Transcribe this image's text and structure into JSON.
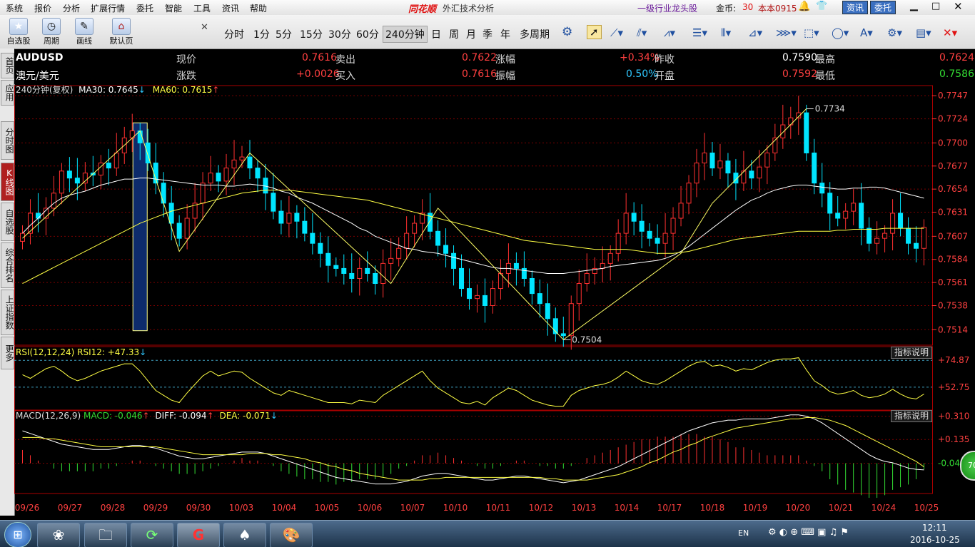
{
  "menubar": {
    "items": [
      "系统",
      "报价",
      "分析",
      "扩展行情",
      "委托",
      "智能",
      "工具",
      "资讯",
      "帮助"
    ],
    "app_logo": "同花顺",
    "app_subtitle": "外汇技术分析",
    "industry_link": "一级行业龙头股",
    "coins_label": "金币:",
    "coins_value": "30",
    "user": "本本0915",
    "news_btn": "资讯",
    "trade_btn": "委托"
  },
  "toolbar": {
    "big_buttons": [
      "自选股",
      "周期",
      "画线",
      "默认页"
    ],
    "periods": [
      "分时",
      "1分",
      "5分",
      "15分",
      "30分",
      "60分",
      "240分钟",
      "日",
      "周",
      "月",
      "季",
      "年",
      "多周期"
    ],
    "active_period": "240分钟",
    "tool_icons": [
      "gear-icon",
      "cursor-icon",
      "line-tool-icon",
      "parallel-line-icon",
      "wave-tool-icon",
      "fib-icon",
      "bars-icon",
      "channel-icon",
      "gann-icon",
      "rectangle-icon",
      "circle-icon",
      "text-tool-icon",
      "settings-icon",
      "save-icon",
      "delete-icon"
    ]
  },
  "sidetabs": [
    "首页",
    "应用",
    "分时图",
    "K线图",
    "自选股",
    "综合排名",
    "上证指数",
    "更多"
  ],
  "active_sidetab": "K线图",
  "quote": {
    "symbol": "AUDUSD",
    "name": "澳元/美元",
    "now_label": "现价",
    "now_value": "0.7616",
    "change_label": "涨跌",
    "change_value": "+0.0026",
    "sell_label": "卖出",
    "sell_value": "0.7622",
    "buy_label": "买入",
    "buy_value": "0.7616",
    "pct_label": "涨幅",
    "pct_value": "+0.34%",
    "amp_label": "振幅",
    "amp_value": "0.50%",
    "prevclose_label": "昨收",
    "prevclose_value": "0.7590",
    "open_label": "开盘",
    "open_value": "0.7592",
    "high_label": "最高",
    "high_value": "0.7624",
    "low_label": "最低",
    "low_value": "0.7586"
  },
  "main_legend": {
    "period": "240分钟(复权)",
    "ma30": "MA30: 0.7645",
    "ma60": "MA60: 0.7615"
  },
  "rsi_legend": {
    "title": "RSI(12,12,24)",
    "value": "RSI12: +47.33"
  },
  "macd_legend": {
    "title": "MACD(12,26,9)",
    "macd": "MACD: -0.046",
    "diff": "DIFF: -0.094",
    "dea": "DEA: -0.071"
  },
  "indicator_btn": "指标说明",
  "zoom_badge": "70",
  "taskbar": {
    "time": "12:11",
    "date": "2016-10-25",
    "lang": "EN"
  },
  "colors": {
    "up": "#ff3030",
    "down": "#00e5ff",
    "ma30": "#ffffff",
    "ma60": "#ffff44",
    "grid": "#7a0000"
  },
  "chart_data": [
    {
      "type": "candlestick",
      "title": "AUDUSD 240分钟",
      "x_tick_labels": [
        "09/26",
        "09/27",
        "09/28",
        "09/29",
        "09/30",
        "10/03",
        "10/04",
        "10/05",
        "10/06",
        "10/07",
        "10/10",
        "10/11",
        "10/12",
        "10/13",
        "10/14",
        "10/17",
        "10/18",
        "10/19",
        "10/20",
        "10/21",
        "10/24",
        "10/25"
      ],
      "y_ticks": [
        0.7747,
        0.7724,
        0.77,
        0.7677,
        0.7654,
        0.7631,
        0.7607,
        0.7584,
        0.7561,
        0.7538,
        0.7514
      ],
      "ylim": [
        0.75,
        0.775
      ],
      "annotations": [
        {
          "label": "0.7734",
          "value": 0.7734
        },
        {
          "label": "0.7504",
          "value": 0.7504
        }
      ],
      "closes": [
        0.761,
        0.763,
        0.7625,
        0.7635,
        0.765,
        0.7672,
        0.7665,
        0.766,
        0.767,
        0.7668,
        0.768,
        0.7675,
        0.769,
        0.7705,
        0.7712,
        0.77,
        0.768,
        0.766,
        0.764,
        0.762,
        0.7605,
        0.7625,
        0.764,
        0.766,
        0.767,
        0.7662,
        0.7675,
        0.7683,
        0.7686,
        0.7675,
        0.7665,
        0.765,
        0.7632,
        0.762,
        0.763,
        0.7622,
        0.761,
        0.76,
        0.759,
        0.7578,
        0.7575,
        0.757,
        0.7565,
        0.7575,
        0.757,
        0.756,
        0.758,
        0.7585,
        0.7595,
        0.761,
        0.762,
        0.763,
        0.7612,
        0.7598,
        0.759,
        0.7575,
        0.7555,
        0.7545,
        0.7548,
        0.7538,
        0.7555,
        0.757,
        0.758,
        0.7575,
        0.7565,
        0.755,
        0.754,
        0.7525,
        0.751,
        0.7508,
        0.754,
        0.756,
        0.757,
        0.7575,
        0.758,
        0.759,
        0.761,
        0.763,
        0.7622,
        0.7612,
        0.7605,
        0.76,
        0.761,
        0.7625,
        0.764,
        0.766,
        0.768,
        0.769,
        0.7675,
        0.7682,
        0.767,
        0.766,
        0.7672,
        0.7665,
        0.7676,
        0.769,
        0.7705,
        0.7718,
        0.7725,
        0.773,
        0.769,
        0.766,
        0.765,
        0.763,
        0.7625,
        0.7632,
        0.764,
        0.7615,
        0.76,
        0.7605,
        0.761,
        0.763,
        0.7615,
        0.76,
        0.7595,
        0.7616
      ],
      "ma30": [
        0.761,
        0.7618,
        0.7625,
        0.7633,
        0.764,
        0.7645,
        0.7648,
        0.765,
        0.7652,
        0.7655,
        0.7658,
        0.766,
        0.7662,
        0.7664,
        0.7664,
        0.7665,
        0.7665,
        0.7664,
        0.7663,
        0.7662,
        0.7661,
        0.766,
        0.7659,
        0.7658,
        0.7658,
        0.7658,
        0.7657,
        0.7657,
        0.7658,
        0.7659,
        0.7658,
        0.7657,
        0.7655,
        0.7652,
        0.765,
        0.7646,
        0.7643,
        0.764,
        0.7636,
        0.7632,
        0.7628,
        0.7624,
        0.762,
        0.7615,
        0.7612,
        0.7607,
        0.7604,
        0.7601,
        0.7598,
        0.7595,
        0.7594,
        0.7592,
        0.7591,
        0.759,
        0.7588,
        0.7586,
        0.7584,
        0.7582,
        0.758,
        0.7578,
        0.7576,
        0.7575,
        0.7575,
        0.7574,
        0.7573,
        0.7572,
        0.7571,
        0.757,
        0.757,
        0.757,
        0.7571,
        0.7572,
        0.7573,
        0.7574,
        0.7575,
        0.7577,
        0.7578,
        0.7579,
        0.758,
        0.7581,
        0.7582,
        0.7583,
        0.7585,
        0.7588,
        0.7592,
        0.7597,
        0.7603,
        0.7609,
        0.7615,
        0.7621,
        0.7627,
        0.7633,
        0.7638,
        0.7643,
        0.7646,
        0.765,
        0.7653,
        0.7655,
        0.7657,
        0.7658,
        0.7658,
        0.7657,
        0.7656,
        0.7655,
        0.7654,
        0.7654,
        0.7655,
        0.7655,
        0.7656,
        0.7656,
        0.7655,
        0.7653,
        0.7651,
        0.7649,
        0.7647,
        0.7645
      ],
      "ma60": [
        0.756,
        0.7564,
        0.7568,
        0.7572,
        0.7576,
        0.758,
        0.7584,
        0.7588,
        0.7592,
        0.7596,
        0.76,
        0.7604,
        0.7608,
        0.7612,
        0.7616,
        0.762,
        0.7623,
        0.7626,
        0.7629,
        0.7632,
        0.7634,
        0.7636,
        0.7638,
        0.764,
        0.7642,
        0.7644,
        0.7646,
        0.7648,
        0.765,
        0.7651,
        0.7652,
        0.7653,
        0.7653,
        0.7653,
        0.7653,
        0.7652,
        0.7651,
        0.765,
        0.7649,
        0.7648,
        0.7647,
        0.7646,
        0.7645,
        0.7644,
        0.7643,
        0.7641,
        0.7639,
        0.7637,
        0.7635,
        0.7633,
        0.7631,
        0.7629,
        0.7627,
        0.7625,
        0.7623,
        0.7621,
        0.7619,
        0.7617,
        0.7615,
        0.7613,
        0.7611,
        0.7609,
        0.7607,
        0.7605,
        0.7603,
        0.7602,
        0.7601,
        0.76,
        0.7599,
        0.7598,
        0.7597,
        0.7596,
        0.7595,
        0.7594,
        0.7594,
        0.7594,
        0.7594,
        0.7594,
        0.7593,
        0.7592,
        0.7591,
        0.759,
        0.759,
        0.759,
        0.7591,
        0.7592,
        0.7594,
        0.7596,
        0.7598,
        0.76,
        0.7602,
        0.7604,
        0.7605,
        0.7606,
        0.7607,
        0.7608,
        0.7609,
        0.761,
        0.7611,
        0.7612,
        0.7612,
        0.7612,
        0.7612,
        0.7612,
        0.7613,
        0.7613,
        0.7614,
        0.7614,
        0.7614,
        0.7614,
        0.7615,
        0.7615,
        0.7615,
        0.7615,
        0.7615,
        0.7615
      ]
    },
    {
      "type": "line",
      "title": "RSI(12,12,24)",
      "y_ticks": [
        74.87,
        52.75
      ],
      "ylim": [
        35,
        85
      ],
      "values": [
        63,
        60,
        64,
        68,
        70,
        66,
        61,
        58,
        60,
        63,
        66,
        68,
        70,
        72,
        72,
        66,
        58,
        50,
        46,
        42,
        40,
        48,
        55,
        62,
        66,
        62,
        64,
        66,
        65,
        60,
        56,
        52,
        48,
        46,
        50,
        48,
        46,
        44,
        42,
        40,
        40,
        40,
        39,
        42,
        41,
        40,
        46,
        50,
        54,
        58,
        62,
        66,
        58,
        52,
        48,
        44,
        40,
        39,
        41,
        38,
        44,
        48,
        52,
        50,
        46,
        42,
        40,
        38,
        37,
        37,
        46,
        50,
        52,
        54,
        55,
        57,
        61,
        66,
        62,
        58,
        56,
        55,
        58,
        62,
        66,
        70,
        73,
        74,
        70,
        71,
        69,
        66,
        68,
        67,
        70,
        73,
        75,
        76,
        76,
        77,
        67,
        58,
        54,
        49,
        47,
        48,
        50,
        46,
        44,
        45,
        47,
        51,
        47,
        44,
        43,
        47
      ]
    },
    {
      "type": "line",
      "title": "MACD(12,26,9)",
      "y_ticks": [
        0.31,
        0.135,
        -0.044
      ],
      "ylim": [
        -0.25,
        0.34
      ],
      "diff": [
        0.2,
        0.18,
        0.16,
        0.14,
        0.12,
        0.1,
        0.09,
        0.08,
        0.07,
        0.06,
        0.06,
        0.06,
        0.07,
        0.08,
        0.09,
        0.09,
        0.08,
        0.07,
        0.05,
        0.03,
        0.01,
        0.0,
        -0.01,
        -0.01,
        0.0,
        0.01,
        0.02,
        0.03,
        0.04,
        0.04,
        0.04,
        0.03,
        0.01,
        -0.01,
        -0.03,
        -0.05,
        -0.07,
        -0.09,
        -0.11,
        -0.13,
        -0.15,
        -0.16,
        -0.17,
        -0.18,
        -0.19,
        -0.2,
        -0.2,
        -0.2,
        -0.19,
        -0.18,
        -0.16,
        -0.14,
        -0.13,
        -0.12,
        -0.12,
        -0.13,
        -0.14,
        -0.15,
        -0.16,
        -0.17,
        -0.17,
        -0.16,
        -0.15,
        -0.14,
        -0.14,
        -0.15,
        -0.16,
        -0.17,
        -0.18,
        -0.19,
        -0.18,
        -0.17,
        -0.15,
        -0.13,
        -0.11,
        -0.09,
        -0.07,
        -0.04,
        -0.01,
        0.02,
        0.05,
        0.08,
        0.11,
        0.14,
        0.17,
        0.2,
        0.22,
        0.24,
        0.26,
        0.27,
        0.28,
        0.28,
        0.29,
        0.29,
        0.29,
        0.29,
        0.3,
        0.31,
        0.32,
        0.32,
        0.31,
        0.29,
        0.26,
        0.22,
        0.18,
        0.14,
        0.1,
        0.06,
        0.02,
        -0.01,
        -0.03,
        -0.04,
        -0.06,
        -0.08,
        -0.09,
        -0.094
      ],
      "dea": [
        0.15,
        0.15,
        0.15,
        0.14,
        0.14,
        0.13,
        0.12,
        0.11,
        0.1,
        0.09,
        0.08,
        0.08,
        0.08,
        0.08,
        0.08,
        0.08,
        0.08,
        0.08,
        0.07,
        0.06,
        0.05,
        0.04,
        0.03,
        0.02,
        0.02,
        0.02,
        0.02,
        0.02,
        0.02,
        0.03,
        0.03,
        0.03,
        0.02,
        0.02,
        0.01,
        0.0,
        -0.01,
        -0.03,
        -0.04,
        -0.06,
        -0.07,
        -0.09,
        -0.1,
        -0.12,
        -0.13,
        -0.14,
        -0.15,
        -0.16,
        -0.17,
        -0.17,
        -0.17,
        -0.17,
        -0.16,
        -0.16,
        -0.15,
        -0.15,
        -0.15,
        -0.15,
        -0.15,
        -0.15,
        -0.15,
        -0.15,
        -0.15,
        -0.15,
        -0.15,
        -0.15,
        -0.15,
        -0.16,
        -0.16,
        -0.17,
        -0.17,
        -0.17,
        -0.17,
        -0.16,
        -0.15,
        -0.14,
        -0.13,
        -0.11,
        -0.09,
        -0.07,
        -0.04,
        -0.02,
        0.01,
        0.04,
        0.06,
        0.09,
        0.11,
        0.14,
        0.16,
        0.18,
        0.2,
        0.22,
        0.23,
        0.24,
        0.25,
        0.26,
        0.27,
        0.28,
        0.29,
        0.29,
        0.3,
        0.3,
        0.29,
        0.28,
        0.26,
        0.24,
        0.21,
        0.18,
        0.15,
        0.12,
        0.09,
        0.06,
        0.03,
        0.0,
        -0.03,
        -0.071
      ]
    }
  ]
}
